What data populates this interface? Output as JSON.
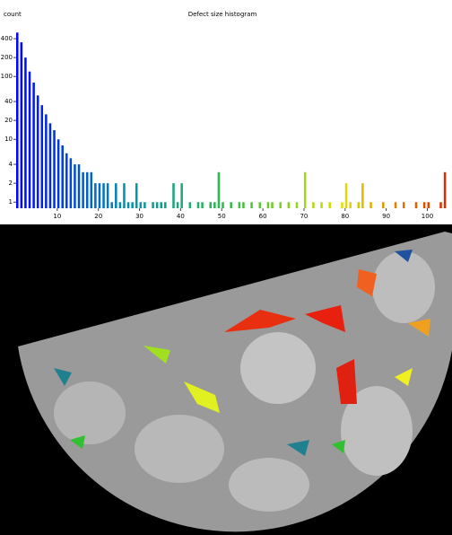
{
  "chart_data": {
    "type": "histogram",
    "title": "Defect size histogram",
    "ylabel": "count",
    "bins": [
      0,
      1,
      2,
      3,
      4,
      5,
      6,
      7,
      8,
      9,
      10,
      11,
      12,
      13,
      14,
      15,
      16,
      17,
      18,
      19,
      20,
      21,
      22,
      23,
      24,
      25,
      26,
      27,
      28,
      29,
      30,
      31,
      32,
      33,
      34,
      35,
      36,
      37,
      38,
      39,
      40,
      41,
      42,
      43,
      44,
      45,
      46,
      47,
      48,
      49,
      50,
      51,
      52,
      53,
      54,
      55,
      56,
      57,
      58,
      59,
      60,
      61,
      62,
      63,
      64,
      65,
      66,
      67,
      68,
      69,
      70,
      71,
      72,
      73,
      74,
      75,
      76,
      77,
      78,
      79,
      80,
      81,
      82,
      83,
      84,
      85,
      86,
      87,
      88,
      89,
      90,
      91,
      92,
      93,
      94,
      95,
      96,
      97,
      98,
      99,
      100,
      101,
      102,
      103,
      104,
      105,
      106
    ],
    "values": [
      500,
      350,
      200,
      120,
      80,
      50,
      35,
      25,
      18,
      14,
      10,
      8,
      6,
      5,
      4,
      4,
      3,
      3,
      3,
      2,
      2,
      2,
      2,
      1,
      2,
      1,
      2,
      1,
      1,
      2,
      1,
      1,
      0,
      1,
      1,
      1,
      1,
      0,
      2,
      1,
      2,
      0,
      1,
      0,
      1,
      1,
      0,
      1,
      1,
      3,
      1,
      0,
      1,
      0,
      1,
      1,
      0,
      1,
      0,
      1,
      0,
      1,
      1,
      0,
      1,
      0,
      1,
      0,
      1,
      0,
      3,
      0,
      1,
      0,
      1,
      0,
      1,
      0,
      0,
      1,
      2,
      1,
      0,
      1,
      2,
      0,
      1,
      0,
      0,
      1,
      0,
      0,
      1,
      0,
      1,
      0,
      0,
      1,
      0,
      1,
      1,
      0,
      0,
      1,
      3,
      0
    ],
    "colorscale": [
      "#0000ff",
      "#0090b0",
      "#30c040",
      "#e0e000",
      "#e02000"
    ],
    "xlim": [
      0,
      106
    ],
    "xticks": [
      10,
      20,
      30,
      40,
      50,
      60,
      70,
      80,
      90,
      100
    ],
    "ylim": [
      0.8,
      800
    ],
    "yticks": [
      1,
      2,
      4,
      10,
      20,
      40,
      100,
      200,
      400
    ],
    "log_y": true
  }
}
